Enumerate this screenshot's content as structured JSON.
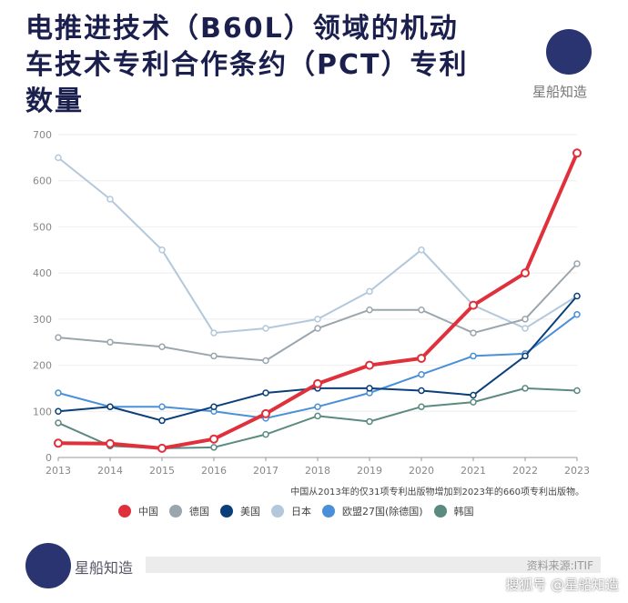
{
  "title": "电推进技术（B60L）领域的机动车技术专利合作条约（PCT）专利数量",
  "brand": "星船知造",
  "note": "中国从2013年的仅31项专利出版物增加到2023年的660项专利出版物。",
  "source": "资料来源:ITIF",
  "credit": "搜狐号 @星船知造",
  "chart_data": {
    "type": "line",
    "title": "电推进技术（B60L）领域的机动车技术专利合作条约（PCT）专利数量",
    "x": [
      "2013",
      "2014",
      "2015",
      "2016",
      "2017",
      "2018",
      "2019",
      "2020",
      "2021",
      "2022",
      "2023"
    ],
    "ylim": [
      0,
      700
    ],
    "yticks": [
      "0",
      "100",
      "200",
      "300",
      "400",
      "500",
      "600",
      "700"
    ],
    "legend_position": "bottom",
    "series": [
      {
        "name": "中国",
        "color": "#e0303c",
        "values": [
          31,
          30,
          20,
          40,
          95,
          160,
          200,
          215,
          330,
          400,
          660
        ]
      },
      {
        "name": "德国",
        "color": "#9aa6ae",
        "values": [
          260,
          250,
          240,
          220,
          210,
          280,
          320,
          320,
          270,
          300,
          420
        ]
      },
      {
        "name": "美国",
        "color": "#0b3f7a",
        "values": [
          100,
          110,
          80,
          110,
          140,
          150,
          150,
          145,
          135,
          220,
          350
        ]
      },
      {
        "name": "日本",
        "color": "#b4c8dc",
        "values": [
          650,
          560,
          450,
          270,
          280,
          300,
          360,
          450,
          330,
          280,
          350
        ]
      },
      {
        "name": "欧盟27国(除德国)",
        "color": "#4a90d9",
        "values": [
          140,
          110,
          110,
          100,
          85,
          110,
          140,
          180,
          220,
          225,
          310
        ]
      },
      {
        "name": "韩国",
        "color": "#5a8a80",
        "values": [
          75,
          25,
          20,
          22,
          50,
          90,
          78,
          110,
          120,
          150,
          145
        ]
      }
    ]
  }
}
